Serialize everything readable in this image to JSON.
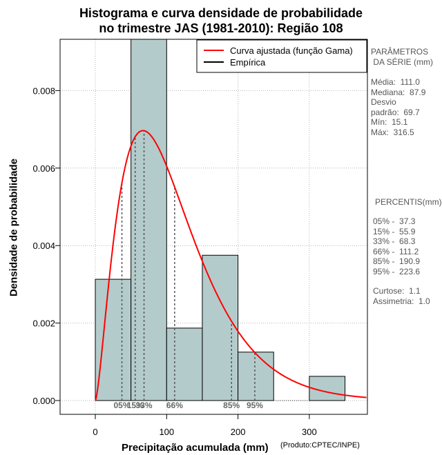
{
  "chart_data": {
    "type": "bar",
    "title_line1": "Histograma e curva densidade de probabilidade",
    "title_line2": "no trimestre JAS (1981-2010): Região 108",
    "xlabel": "Precipitação acumulada (mm)",
    "ylabel": "Densidade de probabilidade",
    "credit": "(Produto:CPTEC/INPE)",
    "xlim": [
      -50,
      380
    ],
    "ylim": [
      -0.0004,
      0.0093
    ],
    "x_ticks": [
      0,
      100,
      200,
      300
    ],
    "y_ticks": [
      0.0,
      0.002,
      0.004,
      0.006,
      0.008
    ],
    "y_tick_labels": [
      "0.000",
      "0.002",
      "0.004",
      "0.006",
      "0.008"
    ],
    "grid": true,
    "bins": [
      {
        "x0": 0,
        "x1": 50,
        "density": 0.00313
      },
      {
        "x0": 50,
        "x1": 100,
        "density": 0.0095
      },
      {
        "x0": 100,
        "x1": 150,
        "density": 0.00187
      },
      {
        "x0": 150,
        "x1": 200,
        "density": 0.00375
      },
      {
        "x0": 200,
        "x1": 250,
        "density": 0.00125
      },
      {
        "x0": 300,
        "x1": 350,
        "density": 0.000625
      }
    ],
    "gamma_fit": {
      "shape": 2.52,
      "scale": 44.0,
      "xmax": 380
    },
    "percentile_lines": [
      {
        "label": "05%",
        "x": 37.3
      },
      {
        "label": "15%",
        "x": 55.9
      },
      {
        "label": "33%",
        "x": 68.3
      },
      {
        "label": "66%",
        "x": 111.2
      },
      {
        "label": "85%",
        "x": 190.9
      },
      {
        "label": "95%",
        "x": 223.6
      }
    ],
    "legend": [
      {
        "label": "Curva ajustada (função Gama)",
        "color": "#ff0000"
      },
      {
        "label": "Empírica",
        "color": "#000000"
      }
    ],
    "colors": {
      "bar_fill": "#b4cbcb",
      "curve": "#ff0000",
      "grid": "#b3b3b3",
      "percentile": "#555555"
    }
  },
  "side_panel": {
    "params_title": "PARÂMETROS\n DA SÉRIE (mm)",
    "stats": "Média:  111.0\nMediana:  87.9\nDesvio\npadrão:  69.7\nMín:  15.1\nMáx:  316.5",
    "percentis_title": "PERCENTIS(mm)",
    "percentis": "05% -  37.3\n15% -  55.9\n33% -  68.3\n66% -  111.2\n85% -  190.9\n95% -  223.6",
    "shape": "Curtose:  1.1\nAssimetria:  1.0"
  }
}
